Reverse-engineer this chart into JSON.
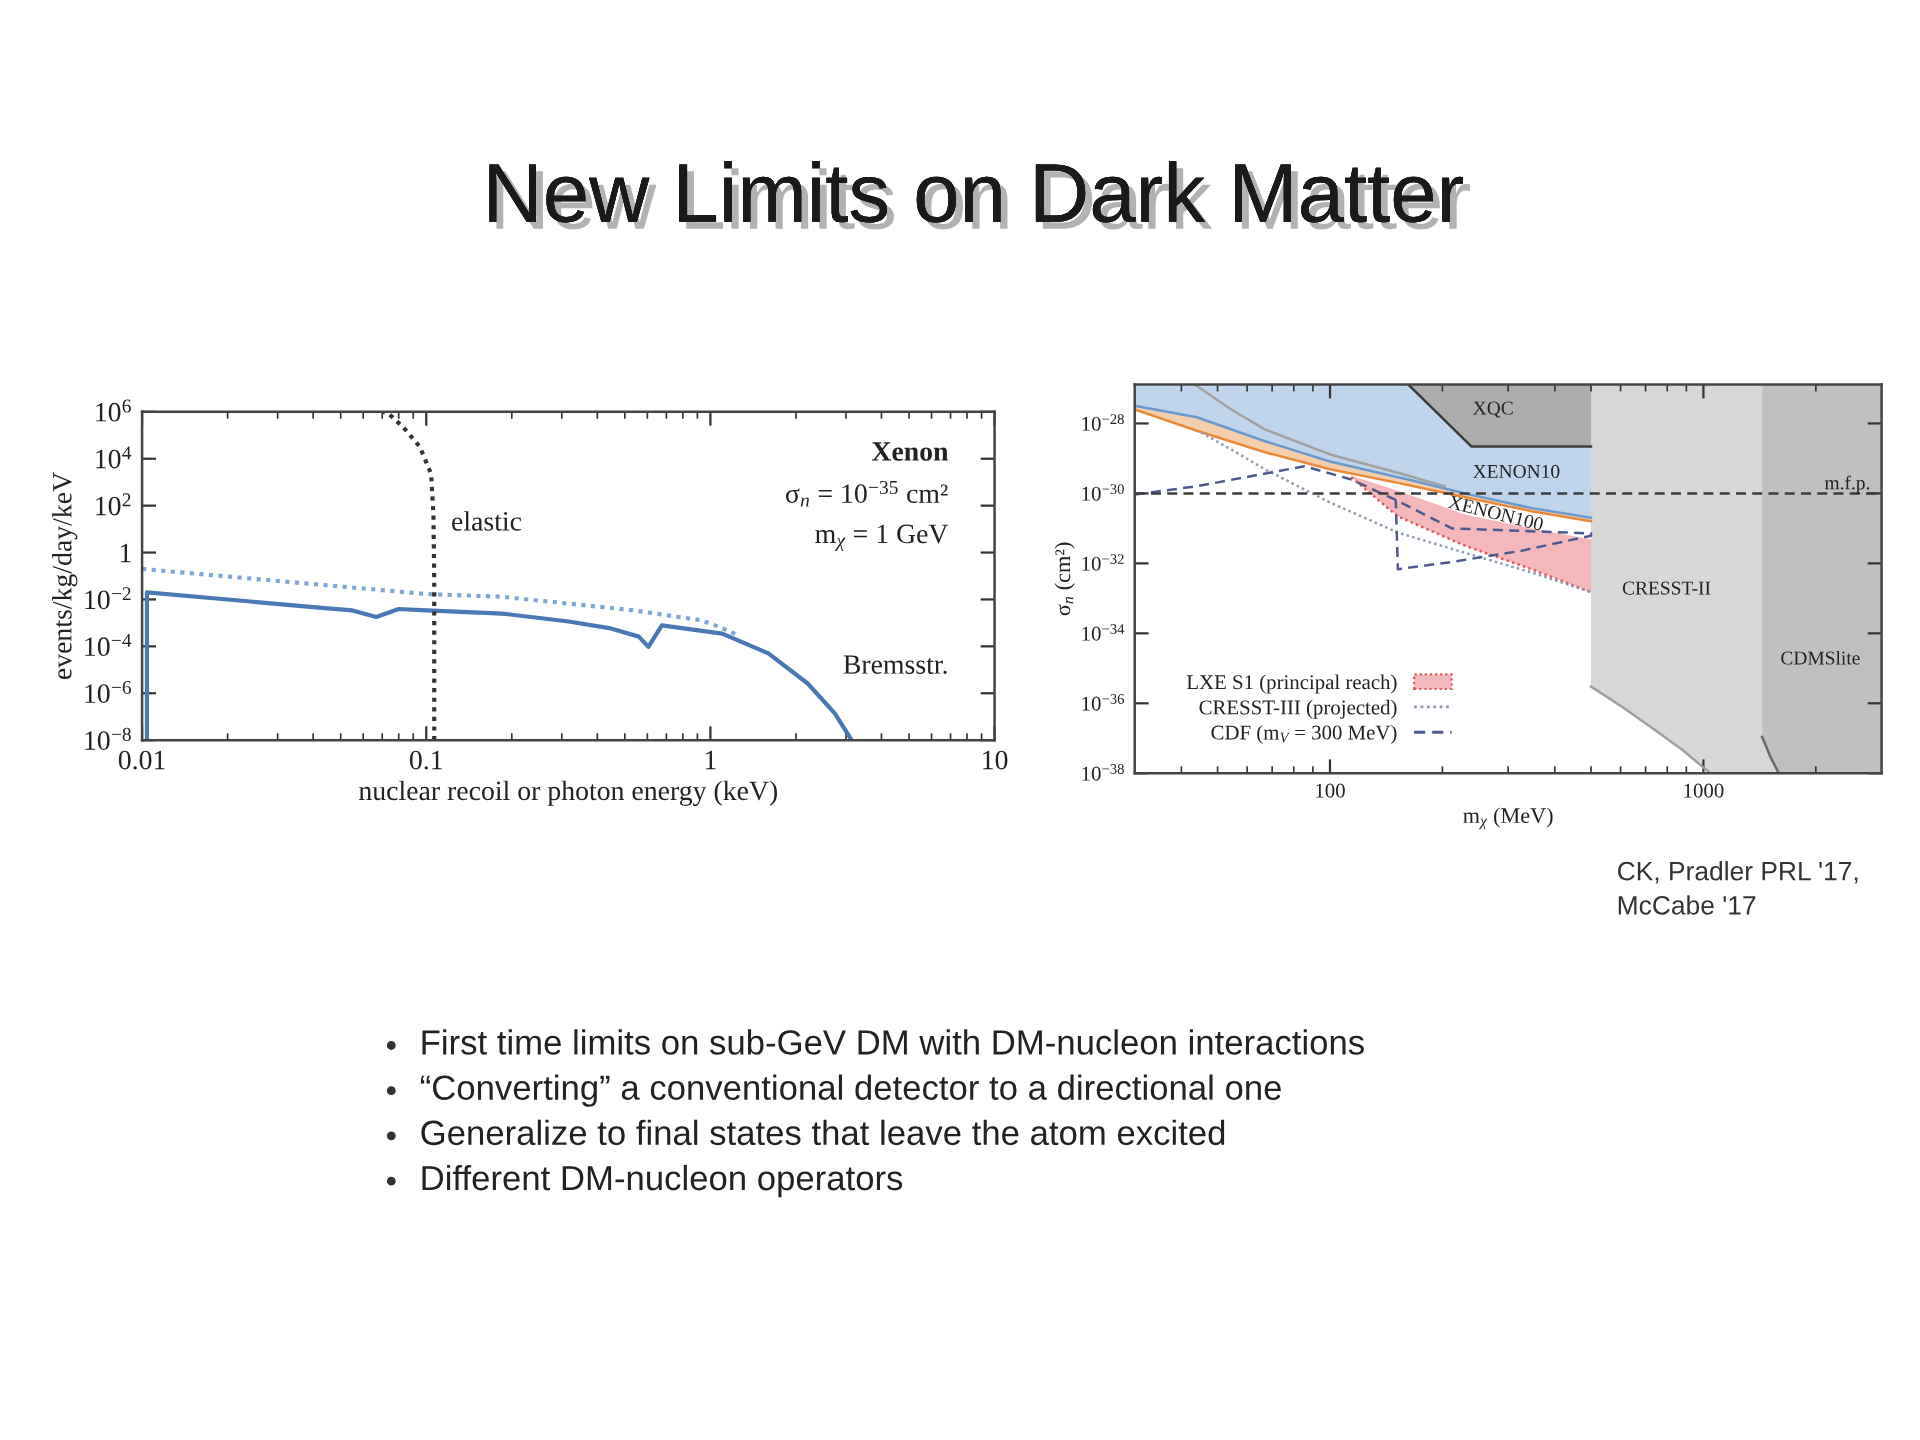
{
  "chart_data": [
    {
      "type": "other",
      "title": "New Limits on Dark Matter"
    },
    {
      "type": "line",
      "xlabel": "nuclear recoil or photon energy (keV)",
      "ylabel": "events/kg/day/keV",
      "log": "xy",
      "xlim": [
        0.01,
        10
      ],
      "ylim": [
        1e-08,
        1000000
      ],
      "xticks": [
        0.01,
        0.1,
        1,
        10,
        {
          "value": 0.02,
          "label": null
        },
        {
          "value": 0.03,
          "label": null
        },
        {
          "value": 0.04,
          "label": null
        },
        {
          "value": 0.05,
          "label": null
        },
        {
          "value": 0.06,
          "label": null
        },
        {
          "value": 0.07,
          "label": null
        },
        {
          "value": 0.08,
          "label": null
        },
        {
          "value": 0.09,
          "label": null
        },
        {
          "value": 0.2,
          "label": null
        },
        {
          "value": 0.3,
          "label": null
        },
        {
          "value": 0.4,
          "label": null
        },
        {
          "value": 0.5,
          "label": null
        },
        {
          "value": 0.6,
          "label": null
        },
        {
          "value": 0.7,
          "label": null
        },
        {
          "value": 0.8,
          "label": null
        },
        {
          "value": 0.9,
          "label": null
        },
        {
          "value": 2,
          "label": null
        },
        {
          "value": 3,
          "label": null
        },
        {
          "value": 4,
          "label": null
        },
        {
          "value": 5,
          "label": null
        },
        {
          "value": 6,
          "label": null
        },
        {
          "value": 7,
          "label": null
        },
        {
          "value": 8,
          "label": null
        },
        {
          "value": 9,
          "label": null
        }
      ],
      "yticks": [
        {
          "value": 1e-08,
          "label": "10$^{−8}$"
        },
        {
          "value": 1e-06,
          "label": "10$^{−6}$"
        },
        {
          "value": 0.0001,
          "label": "10$^{−4}$"
        },
        {
          "value": 0.01,
          "label": "10$^{−2}$"
        },
        1,
        {
          "value": 100,
          "label": "10$^{2}$"
        },
        {
          "value": 10000,
          "label": "10$^{4}$"
        },
        {
          "value": 1000000,
          "label": "10$^{6}$"
        }
      ],
      "series": [
        {
          "color": "#4a78b4",
          "line_style": "solid",
          "x": [
            0.0104,
            0.0104,
            0.02,
            0.04,
            0.055,
            0.0667,
            0.08,
            0.1,
            0.185,
            0.317,
            0.44,
            0.56,
            0.605,
            0.675,
            1.1,
            1.6,
            2.2,
            2.74,
            3.14
          ],
          "values": [
            1e-08,
            0.02,
            0.01,
            0.0047,
            0.0034,
            0.0018,
            0.0039,
            0.0034,
            0.0025,
            0.00115,
            0.0006,
            0.00026,
            9.5e-05,
            0.00078,
            0.00035,
            5e-05,
            2.6e-06,
            1.4e-07,
            1e-08
          ]
        },
        {
          "color": "#7ea7d8",
          "line_style": "dotted",
          "x": [
            0.01,
            0.1,
            0.185,
            0.53,
            0.93,
            1.1,
            1.25
          ],
          "values": [
            0.2,
            0.017,
            0.013,
            0.0035,
            0.0013,
            0.0006,
            0.0003
          ]
        },
        {
          "color": "#333333",
          "line_style": "dotted",
          "x": [
            0.1067,
            0.1067,
            0.106,
            0.104,
            0.095,
            0.083,
            0.074,
            0.0705
          ],
          "values": [
            1e-08,
            0.065,
            45,
            2300,
            32000,
            220000,
            800000,
            1000000
          ]
        }
      ],
      "annotations": [
        "Xenon",
        "σ$_{n}$ = 10$^{−35}$ cm²",
        "m$_{χ}$ = 1 GeV",
        "elastic",
        "Bremsstr."
      ]
    },
    {
      "type": "line",
      "xlabel": "m$_{χ}$ (MeV)",
      "ylabel": "σ$_{n}$ (cm²)",
      "log": "xy",
      "xlim": [
        30,
        3000
      ],
      "ylim": [
        1e-38,
        1.3e-27
      ],
      "xticks": [
        100,
        1000,
        {
          "value": 40,
          "label": null
        },
        {
          "value": 50,
          "label": null
        },
        {
          "value": 60,
          "label": null
        },
        {
          "value": 70,
          "label": null
        },
        {
          "value": 80,
          "label": null
        },
        {
          "value": 90,
          "label": null
        },
        {
          "value": 200,
          "label": null
        },
        {
          "value": 300,
          "label": null
        },
        {
          "value": 400,
          "label": null
        },
        {
          "value": 500,
          "label": null
        },
        {
          "value": 600,
          "label": null
        },
        {
          "value": 700,
          "label": null
        },
        {
          "value": 800,
          "label": null
        },
        {
          "value": 900,
          "label": null
        },
        {
          "value": 2000,
          "label": null
        }
      ],
      "yticks": [
        {
          "value": 1e-38,
          "label": "10$^{−38}$"
        },
        {
          "value": 1e-36,
          "label": "10$^{−36}$"
        },
        {
          "value": 1e-34,
          "label": "10$^{−34}$"
        },
        {
          "value": 1e-32,
          "label": "10$^{−32}$"
        },
        {
          "value": 1e-30,
          "label": "10$^{−30}$"
        },
        {
          "value": 1e-28,
          "label": "10$^{−28}$"
        }
      ],
      "legend": "bottom left",
      "series": [
        {
          "color": "#e88a3a",
          "line_style": "solid",
          "x": [
            30,
            44,
            67,
            100,
            152,
            230,
            347,
            500
          ],
          "values": [
            2.5e-28,
            6.2e-29,
            1.5e-29,
            4.9e-30,
            2e-30,
            7.8e-31,
            3.1e-31,
            1.6e-31
          ],
          "lower": [
            2.5e-28,
            6.2e-29,
            1.5e-29,
            4.9e-30,
            2e-30,
            7.8e-31,
            3.1e-31,
            1.6e-31
          ],
          "upper": [
            3.2e-28,
            1.5e-28,
            3.1e-29,
            8.2e-30,
            2.9e-30,
            1e-30,
            3.8e-31,
            2e-31
          ]
        },
        {
          "color": "#6a9ad0",
          "line_style": "solid",
          "x": [
            30,
            44,
            67,
            100,
            152,
            162,
            230,
            239,
            347,
            500
          ],
          "values": [
            3.2e-28,
            1.5e-28,
            3.1e-29,
            8.2e-30,
            2.9e-30,
            2.5e-30,
            1e-30,
            9.1e-31,
            3.8e-31,
            2e-31
          ],
          "lower": [
            3.2e-28,
            1.5e-28,
            3.1e-29,
            8.2e-30,
            2.9e-30,
            2.5e-30,
            1e-30,
            9.1e-31,
            3.8e-31,
            2e-31
          ],
          "upper": [
            1.3e-27,
            1.3e-27,
            1.3e-27,
            1.3e-27,
            1.3e-27,
            1.3e-27,
            3.4e-29,
            2.2e-29,
            2.2e-29,
            2.2e-29
          ]
        },
        {
          "color": "#a2a2a2",
          "line_style": "solid",
          "x": [
            43.4,
            54.4,
            66.9,
            100,
            152,
            203
          ],
          "values": [
            1.3e-27,
            2.5e-28,
            6.8e-29,
            1.3e-29,
            3.9e-30,
            1.6e-30
          ]
        },
        {
          "color": "#3c3c3c",
          "line_style": "solid",
          "x": [
            162,
            239,
            500
          ],
          "values": [
            1.3e-27,
            2.2e-29,
            2.2e-29
          ],
          "lower": [
            1.3e-27,
            2.2e-29,
            2.2e-29
          ],
          "upper": [
            1.3e-27,
            1.3e-27,
            1.3e-27
          ]
        },
        {
          "name": "LXE S1 (principal reach)",
          "color": "#e5565f",
          "line_style": "dotted",
          "x": [
            114,
            152,
            230,
            347,
            500
          ],
          "values": [
            2.9e-30,
            2.2e-31,
            3.2e-32,
            6.8e-33,
            1.5e-33
          ],
          "lower": [
            2.9e-30,
            2.2e-31,
            3.2e-32,
            6.8e-33,
            1.5e-33
          ],
          "upper": [
            3.2e-30,
            1.2e-30,
            2.5e-31,
            1e-31,
            4.9e-32
          ]
        },
        {
          "name": "CRESST-III (projected)",
          "color": "#8c9cb4",
          "line_style": "dotted",
          "x": [
            45.2,
            54.4,
            66.9,
            100,
            152,
            230,
            347,
            500
          ],
          "values": [
            5.5e-29,
            1.8e-29,
            4.9e-30,
            5.5e-31,
            7.6e-32,
            2e-32,
            5.5e-33,
            1.5e-33
          ]
        },
        {
          "name": "CDF (m$_{V}$ = 300 MeV)",
          "color": "#4d5a8f",
          "line_style": "dashed",
          "x": [
            30,
            44,
            85.5,
            114,
            150,
            212,
            500,
            500,
            326,
            212,
            152,
            150
          ],
          "values": [
            9.3e-31,
            1.6e-30,
            6e-30,
            2.5e-30,
            6.5e-31,
            1e-31,
            7.2e-32,
            6.2e-32,
            2.3e-32,
            1.1e-32,
            6.8e-33,
            6.5e-31
          ]
        },
        {
          "color": "#a0a0a0",
          "line_style": "solid",
          "x": [
            500,
            604,
            743,
            877,
            990,
            1045,
            1436,
            1436,
            1592
          ],
          "values": [
            3e-36,
            8.1e-37,
            1.7e-37,
            4.7e-38,
            1.6e-38,
            1e-38,
            null,
            null,
            null
          ],
          "lower": [
            3e-36,
            8.1e-37,
            1.7e-37,
            4.7e-38,
            1.6e-38,
            1e-38,
            1e-38,
            1e-38,
            1e-38
          ],
          "upper": [
            1.3e-27,
            1.3e-27,
            1.3e-27,
            1.3e-27,
            1.3e-27,
            1.3e-27,
            1.3e-27,
            1.1e-37,
            1e-38
          ]
        },
        {
          "color": "#6a6a6a",
          "line_style": "solid",
          "x": [
            1436,
            1510,
            1592,
            3000
          ],
          "values": [
            1.1e-37,
            3e-38,
            1e-38,
            null
          ],
          "lower": [
            1.1e-37,
            3e-38,
            1e-38,
            1e-38
          ],
          "upper": [
            1.3e-27,
            1.3e-27,
            1.3e-27,
            1.3e-27
          ]
        }
      ],
      "ref_lines": [
        {
          "axis": "y",
          "value": 1e-30,
          "label": "m.f.p.",
          "color": "#3c3c3c",
          "line_style": "dashed"
        }
      ],
      "annotations": [
        "XQC",
        "XENON10",
        "XENON100",
        "CRESST-II",
        "CDMSlite",
        "CK, Pradler PRL '17, McCabe '17"
      ]
    },
    {
      "type": "other",
      "annotations": [
        "First time limits on sub-GeV DM with DM-nucleon interactions",
        "“Converting” a conventional detector to a directional one",
        "Generalize to final states that leave the atom excited",
        "Different DM-nucleon operators"
      ]
    }
  ]
}
